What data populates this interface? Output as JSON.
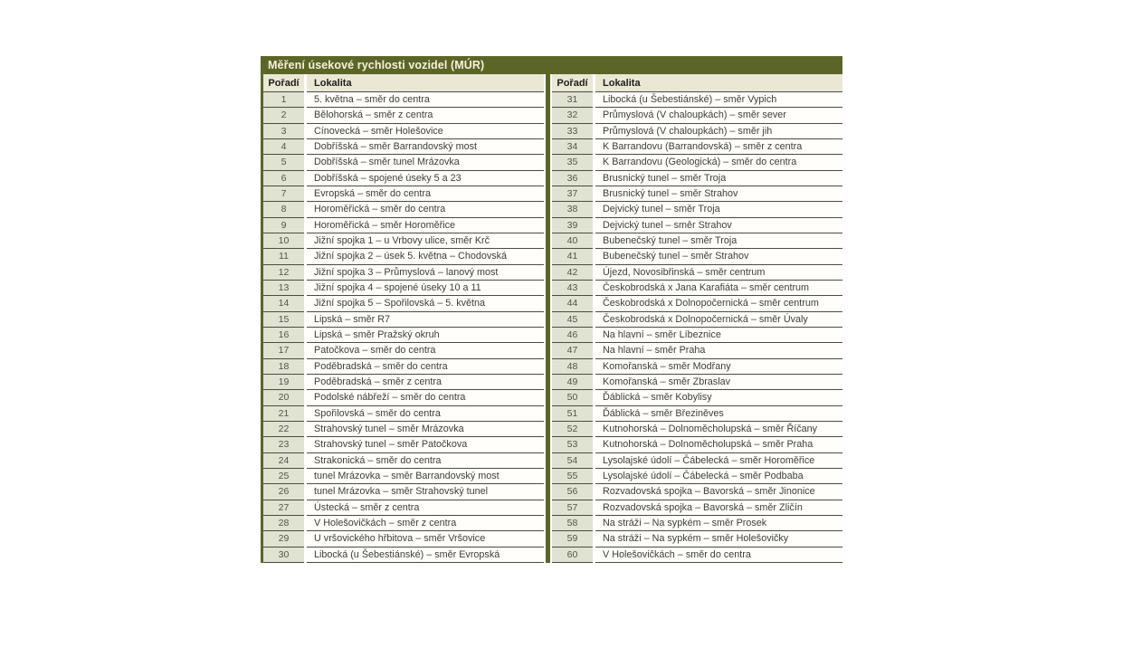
{
  "title": "Měření úsekové rychlosti vozidel (MÚR)",
  "columns": {
    "order": "Pořadí",
    "locality": "Lokalita"
  },
  "colors": {
    "title_bar_bg": "#5b6527",
    "title_text": "#f5f2dc",
    "header_bg": "#eae7d4",
    "order_cell_bg": "#e0e3d1",
    "row_bg": "#fffefb",
    "row_border": "#4b4b43"
  },
  "left_rows": [
    {
      "n": "1",
      "l": "5. května – směr do centra"
    },
    {
      "n": "2",
      "l": "Bělohorská – směr z centra"
    },
    {
      "n": "3",
      "l": "Cínovecká – směr Holešovice"
    },
    {
      "n": "4",
      "l": "Dobříšská – směr Barrandovský most"
    },
    {
      "n": "5",
      "l": "Dobříšská – směr tunel Mrázovka"
    },
    {
      "n": "6",
      "l": "Dobříšská – spojené úseky 5 a 23"
    },
    {
      "n": "7",
      "l": "Evropská – směr do centra"
    },
    {
      "n": "8",
      "l": "Horoměřická – směr do centra"
    },
    {
      "n": "9",
      "l": "Horoměřická – směr Horoměřice"
    },
    {
      "n": "10",
      "l": "Jižní spojka 1 – u Vrbovy ulice, směr Krč"
    },
    {
      "n": "11",
      "l": "Jižní spojka 2 – úsek 5. května – Chodovská"
    },
    {
      "n": "12",
      "l": "Jižní spojka 3 – Průmyslová – lanový most"
    },
    {
      "n": "13",
      "l": "Jižní spojka 4 – spojené úseky 10 a 11"
    },
    {
      "n": "14",
      "l": "Jižní spojka 5 – Spořilovská – 5. května"
    },
    {
      "n": "15",
      "l": "Lipská – směr R7"
    },
    {
      "n": "16",
      "l": "Lipská – směr Pražský okruh"
    },
    {
      "n": "17",
      "l": "Patočkova – směr do centra"
    },
    {
      "n": "18",
      "l": "Poděbradská – směr do centra"
    },
    {
      "n": "19",
      "l": "Poděbradská – směr z centra"
    },
    {
      "n": "20",
      "l": "Podolské nábřeží – směr do centra"
    },
    {
      "n": "21",
      "l": "Spořilovská – směr do centra"
    },
    {
      "n": "22",
      "l": "Strahovský tunel – směr Mrázovka"
    },
    {
      "n": "23",
      "l": "Strahovský tunel – směr Patočkova"
    },
    {
      "n": "24",
      "l": "Strakonická – směr do centra"
    },
    {
      "n": "25",
      "l": "tunel Mrázovka – směr Barrandovský most"
    },
    {
      "n": "26",
      "l": "tunel Mrázovka – směr Strahovský tunel"
    },
    {
      "n": "27",
      "l": "Ústecká – směr z centra"
    },
    {
      "n": "28",
      "l": "V Holešovičkách – směr z centra"
    },
    {
      "n": "29",
      "l": "U vršovického hřbitova – směr Vršovice"
    },
    {
      "n": "30",
      "l": "Libocká (u Šebestiánské) – směr Evropská"
    }
  ],
  "right_rows": [
    {
      "n": "31",
      "l": "Libocká (u Šebestiánské) – směr Vypich"
    },
    {
      "n": "32",
      "l": "Průmyslová (V chaloupkách) – směr sever"
    },
    {
      "n": "33",
      "l": "Průmyslová (V chaloupkách) – směr jih"
    },
    {
      "n": "34",
      "l": "K Barrandovu (Barrandovská) – směr z centra"
    },
    {
      "n": "35",
      "l": "K Barrandovu (Geologická) – směr do centra"
    },
    {
      "n": "36",
      "l": "Brusnický tunel – směr Troja"
    },
    {
      "n": "37",
      "l": "Brusnický tunel – směr Strahov"
    },
    {
      "n": "38",
      "l": "Dejvický tunel – směr Troja"
    },
    {
      "n": "39",
      "l": "Dejvický tunel – směr Strahov"
    },
    {
      "n": "40",
      "l": "Bubenečský tunel – směr Troja"
    },
    {
      "n": "41",
      "l": "Bubenečský tunel – směr Strahov"
    },
    {
      "n": "42",
      "l": "Újezd, Novosibřinská – směr centrum"
    },
    {
      "n": "43",
      "l": "Českobrodská x Jana Karafiáta – směr centrum"
    },
    {
      "n": "44",
      "l": "Českobrodská x Dolnopočernická – směr centrum"
    },
    {
      "n": "45",
      "l": "Českobrodská x Dolnopočernická – směr Úvaly"
    },
    {
      "n": "46",
      "l": "Na hlavní – směr Líbeznice"
    },
    {
      "n": "47",
      "l": "Na hlavní – směr Praha"
    },
    {
      "n": "48",
      "l": "Komořanská – směr Modřany"
    },
    {
      "n": "49",
      "l": "Komořanská – směr Zbraslav"
    },
    {
      "n": "50",
      "l": "Ďáblická – směr Kobylisy"
    },
    {
      "n": "51",
      "l": "Ďáblická – směr Březiněves"
    },
    {
      "n": "52",
      "l": "Kutnohorská – Dolnoměcholupská – směr Říčany"
    },
    {
      "n": "53",
      "l": "Kutnohorská – Dolnoměcholupská – směr Praha"
    },
    {
      "n": "54",
      "l": "Lysolajské údolí – Čábelecká – směr Horoměřice"
    },
    {
      "n": "55",
      "l": "Lysolajské údolí – Čábelecká – směr Podbaba"
    },
    {
      "n": "56",
      "l": "Rozvadovská spojka – Bavorská – směr Jinonice"
    },
    {
      "n": "57",
      "l": "Rozvadovská spojka – Bavorská – směr Zličín"
    },
    {
      "n": "58",
      "l": "Na stráži – Na sypkém – směr Prosek"
    },
    {
      "n": "59",
      "l": "Na stráži – Na sypkém – směr Holešovičky"
    },
    {
      "n": "60",
      "l": "V Holešovičkách – směr do centra"
    }
  ]
}
